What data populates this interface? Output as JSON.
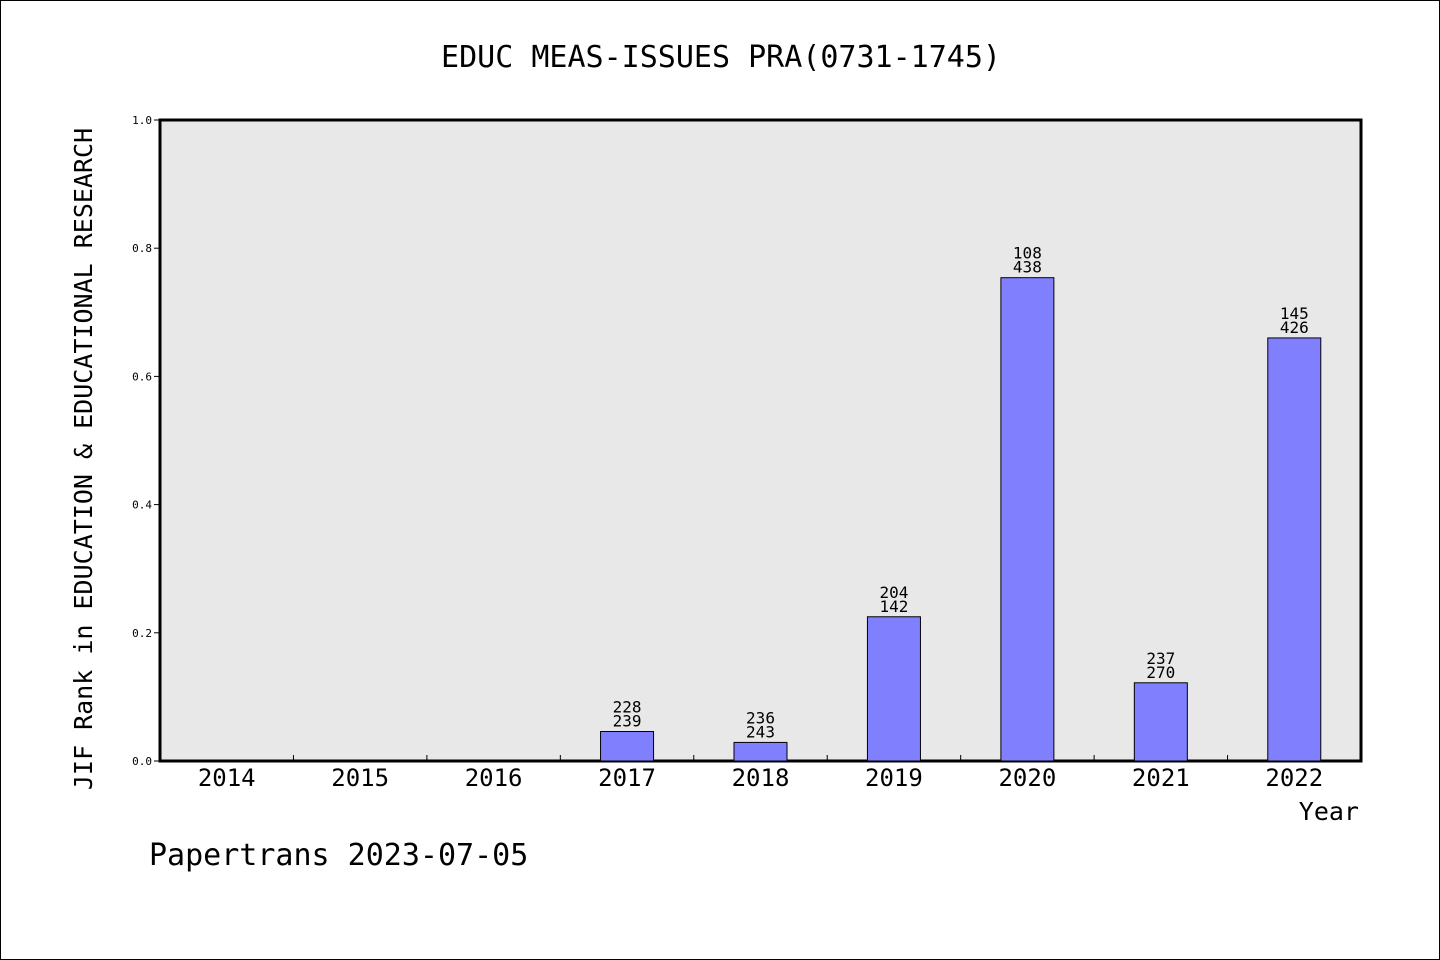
{
  "chart_data": {
    "type": "bar",
    "title": "EDUC MEAS-ISSUES PRA(0731-1745)",
    "xlabel": "Year",
    "ylabel": "JIF Rank in EDUCATION & EDUCATIONAL RESEARCH",
    "categories": [
      "2014",
      "2015",
      "2016",
      "2017",
      "2018",
      "2019",
      "2020",
      "2021",
      "2022"
    ],
    "values": [
      0,
      0,
      0,
      0.046,
      0.029,
      0.225,
      0.754,
      0.122,
      0.66
    ],
    "labels": [
      null,
      null,
      null,
      {
        "top": "228",
        "bottom": "239"
      },
      {
        "top": "236",
        "bottom": "243"
      },
      {
        "top": "204",
        "bottom": "142"
      },
      {
        "top": "108",
        "bottom": "438"
      },
      {
        "top": "237",
        "bottom": "270"
      },
      {
        "top": "145",
        "bottom": "426"
      }
    ],
    "ylim": [
      0,
      1.0
    ],
    "yticks": [
      "0.0",
      "0.2",
      "0.4",
      "0.6",
      "0.8",
      "1.0"
    ],
    "grid": false,
    "colors": {
      "bar": "#8080ff",
      "bar_edge": "#000000",
      "plot_bg": "#e8e8e8"
    }
  },
  "footer": "Papertrans 2023-07-05"
}
